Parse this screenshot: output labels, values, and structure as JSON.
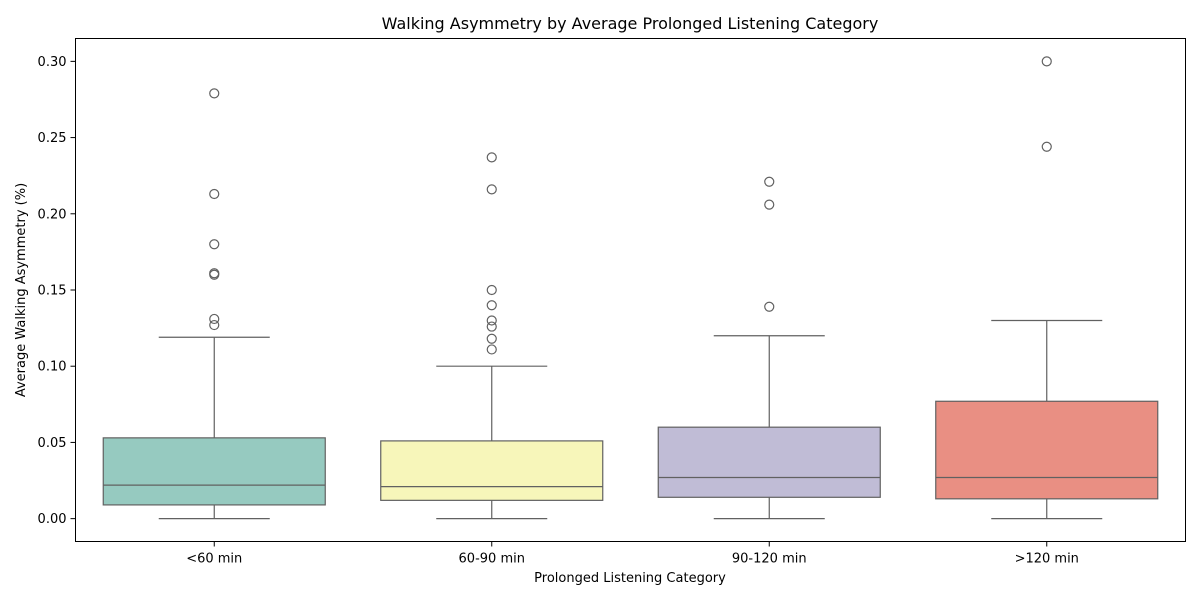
{
  "chart_data": {
    "type": "box",
    "title": "Walking Asymmetry by Average Prolonged Listening Category",
    "xlabel": "Prolonged Listening Category",
    "ylabel": "Average Walking Asymmetry (%)",
    "ylim": [
      -0.015,
      0.315
    ],
    "yticks": [
      0.0,
      0.05,
      0.1,
      0.15,
      0.2,
      0.25,
      0.3
    ],
    "ytick_labels": [
      "0.00",
      "0.05",
      "0.10",
      "0.15",
      "0.20",
      "0.25",
      "0.30"
    ],
    "grid": false,
    "categories": [
      "<60 min",
      "60-90 min",
      "90-120 min",
      ">120 min"
    ],
    "boxes": [
      {
        "category": "<60 min",
        "color": "#96cac0",
        "whisker_low": 0.0,
        "q1": 0.009,
        "median": 0.022,
        "q3": 0.053,
        "whisker_high": 0.119,
        "outliers": [
          0.127,
          0.131,
          0.16,
          0.161,
          0.18,
          0.213,
          0.279
        ]
      },
      {
        "category": "60-90 min",
        "color": "#f7f6ba",
        "whisker_low": 0.0,
        "q1": 0.012,
        "median": 0.021,
        "q3": 0.051,
        "whisker_high": 0.1,
        "outliers": [
          0.111,
          0.118,
          0.126,
          0.13,
          0.14,
          0.15,
          0.216,
          0.237
        ]
      },
      {
        "category": "90-120 min",
        "color": "#c0bcd6",
        "whisker_low": 0.0,
        "q1": 0.014,
        "median": 0.027,
        "q3": 0.06,
        "whisker_high": 0.12,
        "outliers": [
          0.139,
          0.206,
          0.221
        ]
      },
      {
        "category": ">120 min",
        "color": "#e98f83",
        "whisker_low": 0.0,
        "q1": 0.013,
        "median": 0.027,
        "q3": 0.077,
        "whisker_high": 0.13,
        "outliers": [
          0.244,
          0.3
        ]
      }
    ]
  }
}
